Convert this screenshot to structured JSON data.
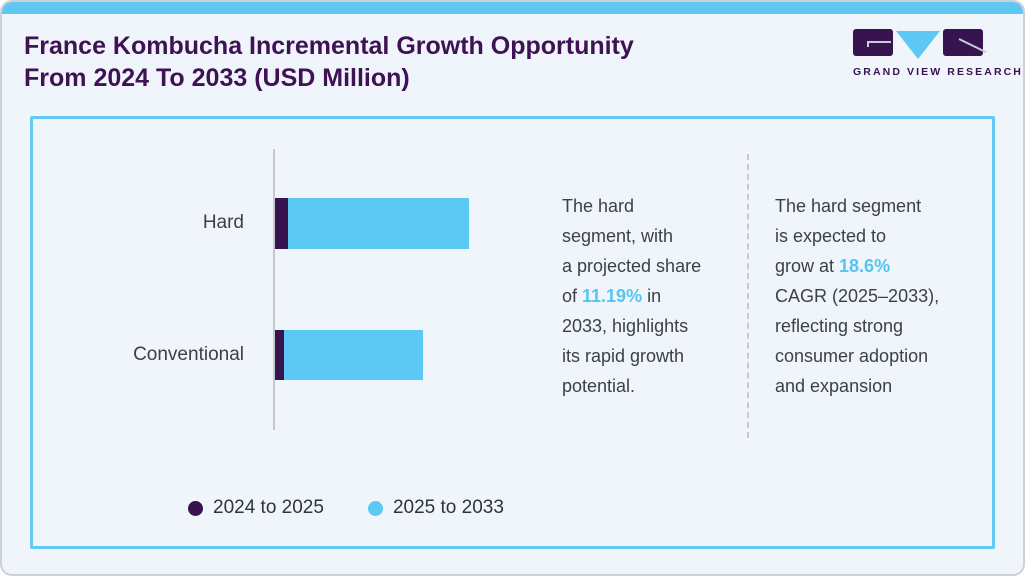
{
  "header": {
    "title_line1": "France Kombucha Incremental Growth Opportunity",
    "title_line2": "From 2024 To 2033 (USD Million)",
    "logo_text": "GRAND VIEW RESEARCH"
  },
  "colors": {
    "accent_blue": "#5ec8f2",
    "dark_purple": "#371450",
    "title_purple": "#3e1253",
    "highlight_blue": "#53c5f0",
    "panel_border": "#63cbf3",
    "background": "#eff5fa",
    "body_text": "#3c4145"
  },
  "chart_data": {
    "type": "bar",
    "orientation": "horizontal",
    "stacked": true,
    "title": "France Kombucha Incremental Growth Opportunity From 2024 To 2033 (USD Million)",
    "xlabel": "",
    "ylabel": "",
    "axis_values_shown": false,
    "units": "relative (axis unlabeled, USD Million implied)",
    "xlim": [
      0,
      100
    ],
    "grid": false,
    "legend_position": "bottom",
    "categories": [
      "Hard",
      "Conventional"
    ],
    "series": [
      {
        "name": "2024 to 2025",
        "color": "#371450",
        "values": [
          6.9,
          4.8
        ]
      },
      {
        "name": "2025 to 2033",
        "color": "#5cc9f4",
        "values": [
          93.1,
          71.5
        ]
      }
    ]
  },
  "annotations": {
    "first": {
      "before": "The hard\nsegment, with\na projected share\nof ",
      "highlight": "11.19%",
      "after": " in\n2033, highlights\nits rapid growth\npotential."
    },
    "second": {
      "before": "The hard segment\nis expected to\ngrow at ",
      "highlight": "18.6%",
      "after": "\nCAGR (2025–2033),\n reflecting strong\nconsumer adoption\nand expansion"
    }
  }
}
